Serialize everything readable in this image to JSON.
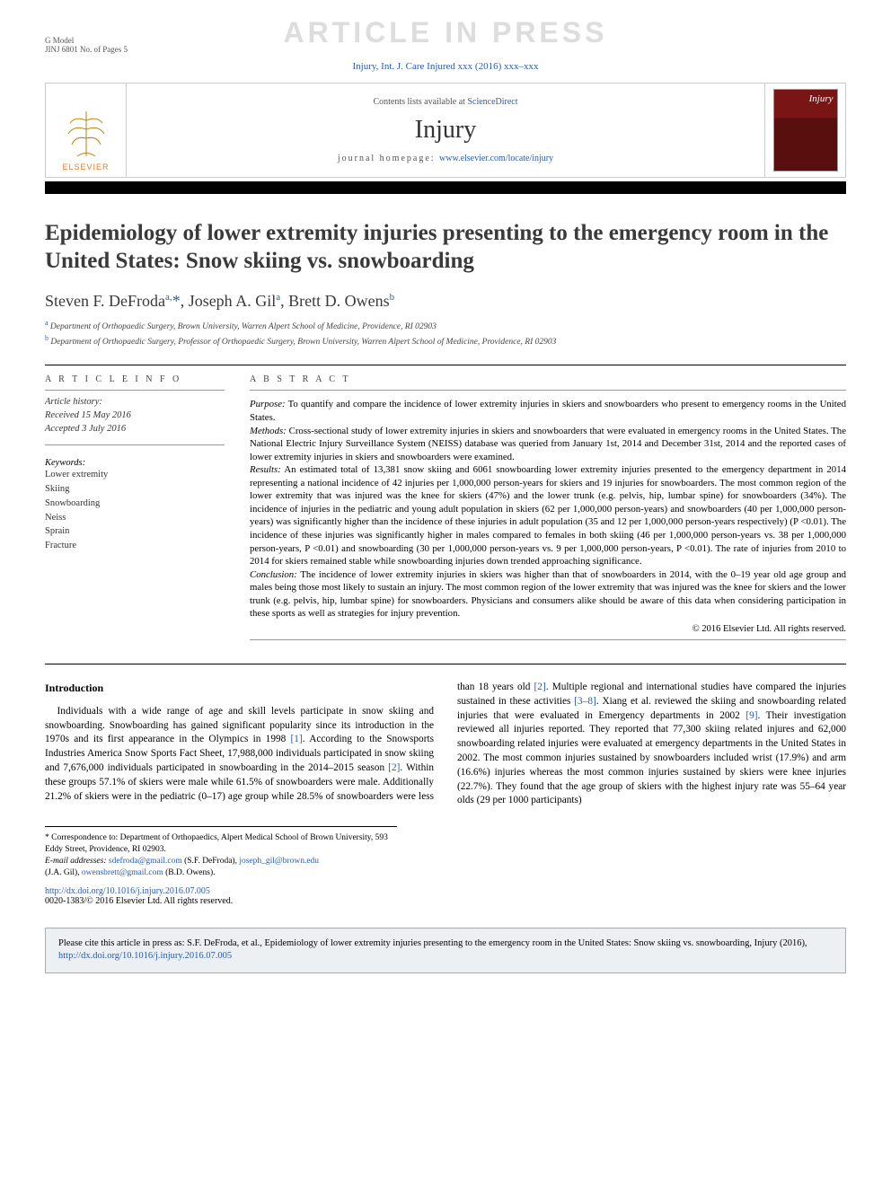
{
  "header": {
    "gmodel": "G Model",
    "gmodel_sub": "JINJ 6801 No. of Pages 5",
    "watermark": "ARTICLE IN PRESS",
    "journal_ref": "Injury, Int. J. Care Injured xxx (2016) xxx–xxx",
    "contents_text": "Contents lists available at ",
    "contents_link": "ScienceDirect",
    "journal_name": "Injury",
    "homepage_label": "journal homepage: ",
    "homepage_url": "www.elsevier.com/locate/injury",
    "elsevier": "ELSEVIER",
    "cover_title": "Injury"
  },
  "article": {
    "title": "Epidemiology of lower extremity injuries presenting to the emergency room in the United States: Snow skiing vs. snowboarding",
    "authors_html": "Steven F. DeFroda<sup>a,</sup><span class='star'>*</span>, Joseph A. Gil<sup>a</sup>, Brett D. Owens<sup>b</sup>",
    "affil_a": "Department of Orthopaedic Surgery, Brown University, Warren Alpert School of Medicine, Providence, RI 02903",
    "affil_b": "Department of Orthopaedic Surgery, Professor of Orthopaedic Surgery, Brown University, Warren Alpert School of Medicine, Providence, RI 02903"
  },
  "info": {
    "heading": "A R T I C L E  I N F O",
    "history_label": "Article history:",
    "received": "Received 15 May 2016",
    "accepted": "Accepted 3 July 2016",
    "kw_label": "Keywords:",
    "keywords": [
      "Lower extremity",
      "Skiing",
      "Snowboarding",
      "Neiss",
      "Sprain",
      "Fracture"
    ]
  },
  "abstract": {
    "heading": "A B S T R A C T",
    "purpose_label": "Purpose:",
    "purpose": " To quantify and compare the incidence of lower extremity injuries in skiers and snowboarders who present to emergency rooms in the United States.",
    "methods_label": "Methods:",
    "methods": " Cross-sectional study of lower extremity injuries in skiers and snowboarders that were evaluated in emergency rooms in the United States. The National Electric Injury Surveillance System (NEISS) database was queried from January 1st, 2014 and December 31st, 2014 and the reported cases of lower extremity injuries in skiers and snowboarders were examined.",
    "results_label": "Results:",
    "results": " An estimated total of 13,381 snow skiing and 6061 snowboarding lower extremity injuries presented to the emergency department in 2014 representing a national incidence of 42 injuries per 1,000,000 person-years for skiers and 19 injuries for snowboarders. The most common region of the lower extremity that was injured was the knee for skiers (47%) and the lower trunk (e.g. pelvis, hip, lumbar spine) for snowboarders (34%). The incidence of injuries in the pediatric and young adult population in skiers (62 per 1,000,000 person-years) and snowboarders (40 per 1,000,000 person-years) was significantly higher than the incidence of these injuries in adult population (35 and 12 per 1,000,000 person-years respectively) (P <0.01). The incidence of these injuries was significantly higher in males compared to females in both skiing (46 per 1,000,000 person-years vs. 38 per 1,000,000 person-years, P <0.01) and snowboarding (30 per 1,000,000 person-years vs. 9 per 1,000,000 person-years, P <0.01). The rate of injuries from 2010 to 2014 for skiers remained stable while snowboarding injuries down trended approaching significance.",
    "conclusion_label": "Conclusion:",
    "conclusion": " The incidence of lower extremity injuries in skiers was higher than that of snowboarders in 2014, with the 0–19 year old age group and males being those most likely to sustain an injury. The most common region of the lower extremity that was injured was the knee for skiers and the lower trunk (e.g. pelvis, hip, lumbar spine) for snowboarders. Physicians and consumers alike should be aware of this data when considering participation in these sports as well as strategies for injury prevention.",
    "copyright": "© 2016 Elsevier Ltd. All rights reserved."
  },
  "body": {
    "intro_heading": "Introduction",
    "col1": "Individuals with a wide range of age and skill levels participate in snow skiing and snowboarding. Snowboarding has gained significant popularity since its introduction in the 1970s and its first appearance in the Olympics in 1998 [1]. According to the Snowsports Industries America Snow Sports Fact Sheet, 17,988,000 individuals participated in snow skiing and 7,676,000 individuals participated in snowboarding in the 2014–2015 season [2]. Within these groups 57.1% of skiers were male while 61.5% of",
    "col2": "snowboarders were male. Additionally 21.2% of skiers were in the pediatric (0–17) age group while 28.5% of snowboarders were less than 18 years old [2]. Multiple regional and international studies have compared the injuries sustained in these activities [3–8]. Xiang et al. reviewed the skiing and snowboarding related injuries that were evaluated in Emergency departments in 2002 [9]. Their investigation reviewed all injuries reported. They reported that 77,300 skiing related injures and 62,000 snowboarding related injuries were evaluated at emergency departments in the United States in 2002. The most common injuries sustained by snowboarders included wrist (17.9%) and arm (16.6%) injuries whereas the most common injuries sustained by skiers were knee injuries (22.7%). They found that the age group of skiers with the highest injury rate was 55–64 year olds (29 per 1000 participants)"
  },
  "footnotes": {
    "corr": "* Correspondence to: Department of Orthopaedics, Alpert Medical School of Brown University, 593 Eddy Street, Providence, RI 02903.",
    "email_label": "E-mail addresses:",
    "email1": "sdefroda@gmail.com",
    "email1_who": " (S.F. DeFroda), ",
    "email2": "joseph_gil@brown.edu",
    "email2_who": " (J.A. Gil), ",
    "email3": "owensbrett@gmail.com",
    "email3_who": " (B.D. Owens)."
  },
  "doi": {
    "url": "http://dx.doi.org/10.1016/j.injury.2016.07.005",
    "issn_line": "0020-1383/© 2016 Elsevier Ltd. All rights reserved."
  },
  "citebox": {
    "text_pre": "Please cite this article in press as: S.F. DeFroda, et al., Epidemiology of lower extremity injuries presenting to the emergency room in the United States: Snow skiing vs. snowboarding, Injury (2016), ",
    "link": "http://dx.doi.org/10.1016/j.injury.2016.07.005"
  },
  "colors": {
    "link": "#2a5caa",
    "elsevier_orange": "#e67e22",
    "watermark": "#dddddd",
    "citebox_bg": "#edf0f3"
  }
}
